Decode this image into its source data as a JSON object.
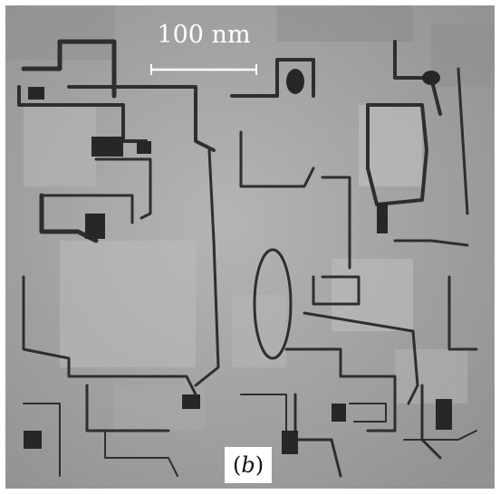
{
  "figure": {
    "scale_bar_label": "100 nm",
    "panel_label": "(b)",
    "colors": {
      "background_gray": "#9a9a9a",
      "boundary_dark": "#1e1e1e",
      "scale_bar": "#ffffff",
      "label_box": "#ffffff"
    }
  }
}
